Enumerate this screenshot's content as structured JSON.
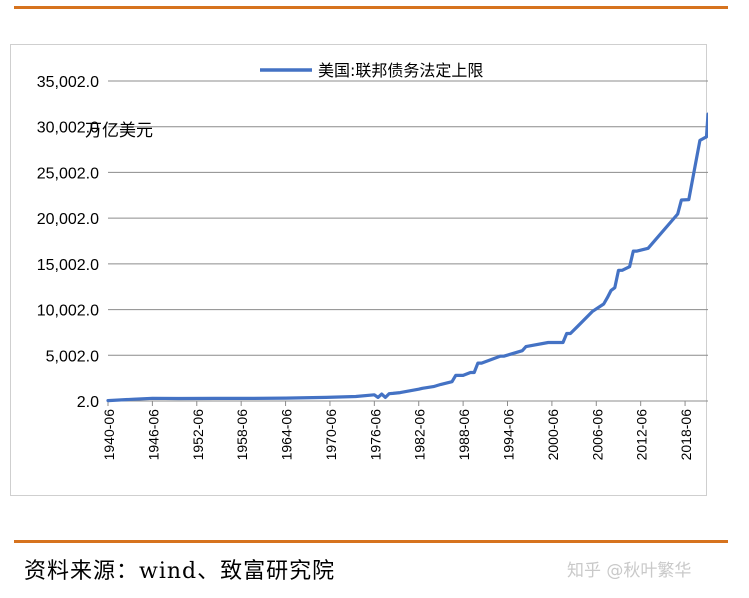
{
  "chart_data": {
    "type": "line",
    "title": "",
    "unit_label": "万亿美元",
    "xlabel": "",
    "ylabel": "",
    "ylim": [
      2.0,
      35002.0
    ],
    "yticks": [
      "2.0",
      "5,002.0",
      "10,002.0",
      "15,002.0",
      "20,002.0",
      "25,002.0",
      "30,002.0",
      "35,002.0"
    ],
    "ytick_values": [
      2,
      5002,
      10002,
      15002,
      20002,
      25002,
      30002,
      35002
    ],
    "xticks": [
      "1940-06",
      "1946-06",
      "1952-06",
      "1958-06",
      "1964-06",
      "1970-06",
      "1976-06",
      "1982-06",
      "1988-06",
      "1994-06",
      "2000-06",
      "2006-06",
      "2012-06",
      "2018-06"
    ],
    "xlim": [
      1940.5,
      2021.6
    ],
    "grid": true,
    "legend_position": "top-center",
    "series": [
      {
        "name": "美国:联邦债务法定上限",
        "color": "#4472c4",
        "x": [
          1940.5,
          1944,
          1946.5,
          1950,
          1955,
          1960,
          1964.5,
          1970,
          1974,
          1976.5,
          1977,
          1977.5,
          1978,
          1978.5,
          1979,
          1980,
          1982.5,
          1983,
          1984.5,
          1985.5,
          1987,
          1987.5,
          1988.5,
          1989.5,
          1990,
          1990.5,
          1991,
          1993.5,
          1994,
          1996.5,
          1997,
          2000,
          2002,
          2002.5,
          2003,
          2004,
          2006,
          2007.5,
          2008,
          2008.5,
          2009,
          2009.5,
          2010,
          2011,
          2011.5,
          2012,
          2013.5,
          2015,
          2017.5,
          2018,
          2019,
          2020.5,
          2021.4,
          2021.6
        ],
        "y": [
          45,
          200,
          300,
          275,
          281,
          290,
          324,
          395,
          495,
          682,
          400,
          752,
          400,
          798,
          830,
          925,
          1290,
          1389,
          1573,
          1823,
          2111,
          2800,
          2800,
          3123,
          3123,
          4145,
          4145,
          4900,
          4900,
          5500,
          5950,
          6400,
          6400,
          7384,
          7384,
          8184,
          9815,
          10615,
          11315,
          12104,
          12394,
          14294,
          14294,
          14694,
          16394,
          16394,
          16699,
          18113,
          20456,
          21988,
          22030,
          28500,
          28900,
          31381
        ]
      }
    ]
  },
  "footer": {
    "source": "资料来源：wind、致富研究院",
    "watermark": "知乎 @秋叶繁华"
  }
}
